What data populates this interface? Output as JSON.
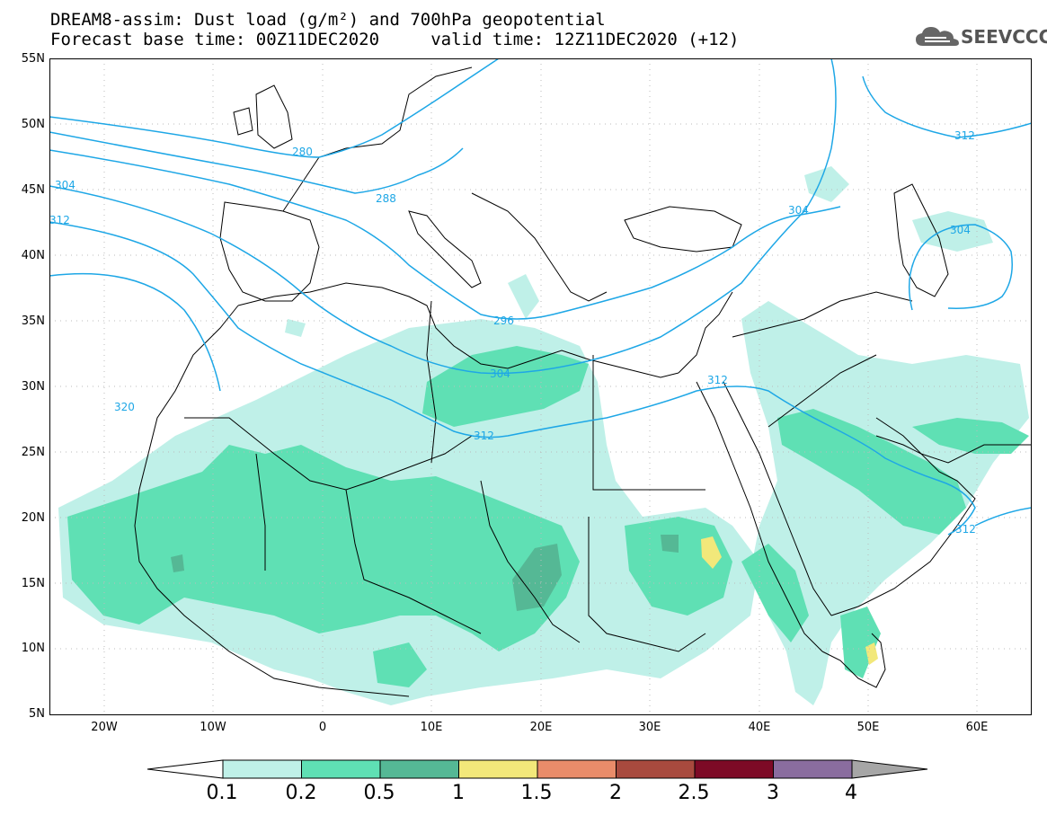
{
  "title": {
    "line1": "DREAM8-assim: Dust load (g/m²) and 700hPa geopotential",
    "line2": "Forecast base time: 00Z11DEC2020     valid time: 12Z11DEC2020 (+12)"
  },
  "logo": {
    "text": "SEEVCCC",
    "icon": "cloud-icon"
  },
  "map": {
    "lat_labels": [
      "55N",
      "50N",
      "45N",
      "40N",
      "35N",
      "30N",
      "25N",
      "20N",
      "15N",
      "10N",
      "5N"
    ],
    "lon_labels": [
      "20W",
      "10W",
      "0",
      "10E",
      "20E",
      "30E",
      "40E",
      "50E",
      "60E"
    ],
    "extent": {
      "lon_min": -25,
      "lon_max": 65,
      "lat_min": 5,
      "lat_max": 55
    },
    "contour_labels": [
      "280",
      "288",
      "296",
      "304",
      "304",
      "304",
      "304",
      "312",
      "312",
      "312",
      "312",
      "312",
      "320"
    ]
  },
  "colorbar": {
    "labels": [
      "0.1",
      "0.2",
      "0.5",
      "1",
      "1.5",
      "2",
      "2.5",
      "3",
      "4"
    ],
    "colors": [
      "#bff0e8",
      "#5fe0b4",
      "#55b895",
      "#f2e87a",
      "#e98c6a",
      "#a84a3e",
      "#7d0a26",
      "#8a6d9f"
    ],
    "under_color": "#ffffff",
    "over_color": "#a6a6a6"
  },
  "colors": {
    "contour": "#1ea7e6",
    "dust_light": "#bff0e8",
    "dust_mid": "#5fe0b4",
    "dust_dark": "#55b895",
    "dust_yellow": "#f2e87a"
  }
}
